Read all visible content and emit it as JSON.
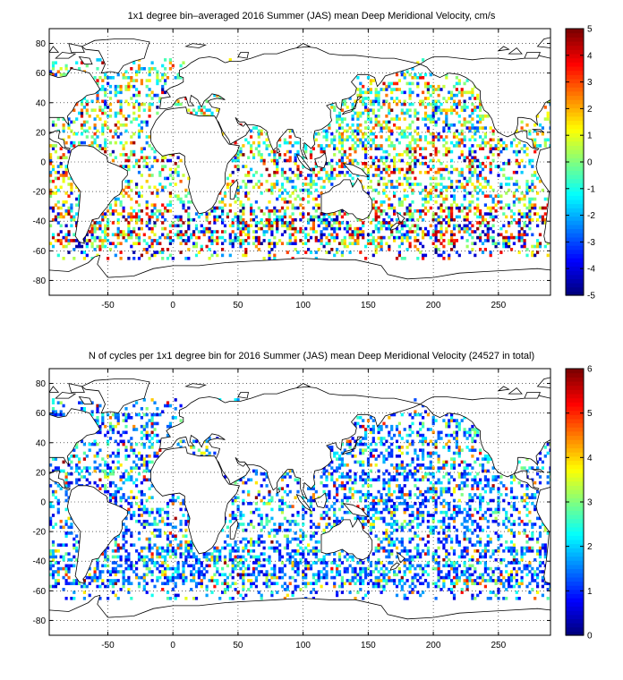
{
  "chart_data": [
    {
      "type": "heatmap",
      "title": "1x1 degree bin–averaged 2016 Summer (JAS) mean Deep Meridional Velocity, cm/s",
      "xlim": [
        -95,
        290
      ],
      "ylim": [
        -90,
        90
      ],
      "xticks": [
        -50,
        0,
        50,
        100,
        150,
        200,
        250
      ],
      "yticks": [
        -80,
        -60,
        -40,
        -20,
        0,
        20,
        40,
        60,
        80
      ],
      "grid": true,
      "colorbar": {
        "min": -5,
        "max": 5,
        "ticks": [
          -5,
          -4,
          -3,
          -2,
          -1,
          0,
          1,
          2,
          3,
          4,
          5
        ],
        "colormap": "jet",
        "position": "right"
      },
      "pattern": "velocity"
    },
    {
      "type": "heatmap",
      "title": "N of cycles per 1x1 degree bin for 2016 Summer (JAS) mean Deep Meridional Velocity (24527 in total)",
      "xlim": [
        -95,
        290
      ],
      "ylim": [
        -90,
        90
      ],
      "xticks": [
        -50,
        0,
        50,
        100,
        150,
        200,
        250
      ],
      "yticks": [
        -80,
        -60,
        -40,
        -20,
        0,
        20,
        40,
        60,
        80
      ],
      "grid": true,
      "colorbar": {
        "min": 0,
        "max": 6,
        "ticks": [
          0,
          1,
          2,
          3,
          4,
          5,
          6
        ],
        "colormap": "jet",
        "position": "right"
      },
      "pattern": "counts"
    }
  ]
}
